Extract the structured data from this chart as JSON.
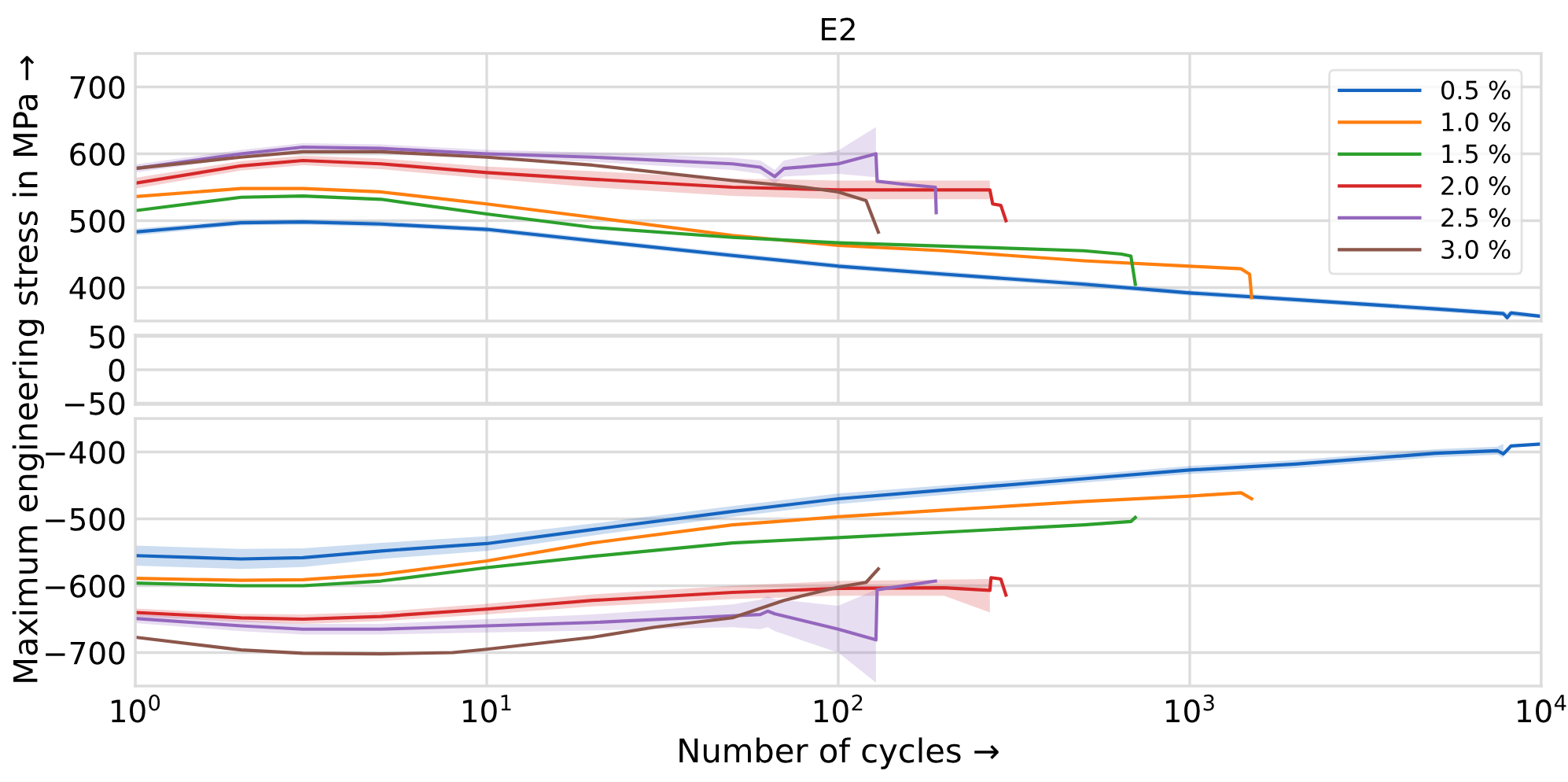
{
  "chart_data": [
    {
      "type": "line",
      "title": "E2",
      "ylabel": "Maximum engineering stress in MPa →",
      "log": "x",
      "grid": true,
      "legend": "top right",
      "tick_labels": "y",
      "xlim": [
        1,
        10000
      ],
      "xticks": [
        {
          "value": 1,
          "label": null
        },
        {
          "value": 10,
          "label": null
        },
        {
          "value": 100,
          "label": null
        },
        {
          "value": 1000,
          "label": null
        },
        {
          "value": 10000,
          "label": null
        }
      ],
      "ylim": [
        350,
        750
      ],
      "yticks": [
        400,
        500,
        600,
        700
      ],
      "series": [
        {
          "name": "0.5 %",
          "color": "#1565c0",
          "x": [
            1,
            2,
            3,
            5,
            10,
            20,
            50,
            100,
            200,
            500,
            1000,
            2000,
            5000,
            7800,
            8000,
            8200,
            10000
          ],
          "values": [
            483,
            497,
            498,
            495,
            487,
            470,
            448,
            432,
            420,
            405,
            392,
            382,
            368,
            361,
            355,
            362,
            357
          ],
          "lower": [
            478,
            493,
            494,
            491,
            483,
            466,
            444,
            428,
            416,
            401,
            388,
            378,
            364,
            357,
            350,
            357,
            354
          ],
          "upper": [
            488,
            501,
            502,
            499,
            491,
            474,
            452,
            436,
            424,
            409,
            396,
            386,
            372,
            365,
            362,
            366,
            360
          ]
        },
        {
          "name": "1.0 %",
          "color": "#ff7f0e",
          "x": [
            1,
            2,
            3,
            5,
            10,
            20,
            50,
            100,
            200,
            500,
            1000,
            1400,
            1480,
            1500
          ],
          "values": [
            536,
            548,
            548,
            543,
            525,
            505,
            478,
            463,
            455,
            440,
            432,
            428,
            420,
            385
          ]
        },
        {
          "name": "1.5 %",
          "color": "#2ca02c",
          "x": [
            1,
            2,
            3,
            5,
            10,
            20,
            50,
            100,
            200,
            500,
            640,
            680,
            700
          ],
          "values": [
            515,
            535,
            537,
            532,
            510,
            490,
            475,
            467,
            462,
            455,
            450,
            447,
            405
          ]
        },
        {
          "name": "2.0 %",
          "color": "#d62728",
          "x": [
            1,
            2,
            3,
            5,
            10,
            20,
            50,
            100,
            200,
            270,
            275,
            290,
            300
          ],
          "values": [
            556,
            582,
            590,
            585,
            572,
            562,
            550,
            546,
            546,
            546,
            525,
            523,
            500
          ],
          "lower": [
            548,
            575,
            583,
            577,
            563,
            550,
            537,
            532,
            532,
            532,
            null,
            null,
            null
          ],
          "upper": [
            564,
            589,
            597,
            593,
            581,
            574,
            563,
            560,
            560,
            560,
            null,
            null,
            null
          ]
        },
        {
          "name": "2.5 %",
          "color": "#9467bd",
          "x": [
            1,
            2,
            3,
            5,
            10,
            20,
            50,
            60,
            66,
            70,
            100,
            128,
            129,
            150,
            189,
            190
          ],
          "values": [
            578,
            600,
            610,
            608,
            600,
            595,
            585,
            580,
            566,
            578,
            585,
            600,
            559,
            555,
            550,
            512
          ],
          "lower": [
            572,
            594,
            604,
            602,
            594,
            588,
            576,
            570,
            556,
            566,
            570,
            565,
            null,
            null,
            null,
            null
          ],
          "upper": [
            584,
            606,
            616,
            614,
            606,
            602,
            594,
            590,
            576,
            590,
            605,
            640,
            null,
            null,
            null,
            null
          ]
        },
        {
          "name": "3.0 %",
          "color": "#8c564b",
          "x": [
            1,
            2,
            3,
            5,
            10,
            20,
            50,
            80,
            100,
            120,
            130
          ],
          "values": [
            578,
            595,
            603,
            603,
            595,
            583,
            560,
            550,
            543,
            530,
            483
          ]
        }
      ]
    },
    {
      "type": "line",
      "log": "x",
      "grid": true,
      "tick_labels": "y",
      "xlim": [
        1,
        10000
      ],
      "xticks": [
        {
          "value": 1,
          "label": null
        },
        {
          "value": 10,
          "label": null
        },
        {
          "value": 100,
          "label": null
        },
        {
          "value": 1000,
          "label": null
        },
        {
          "value": 10000,
          "label": null
        }
      ],
      "ylim": [
        -52,
        52
      ],
      "yticks": [
        -50,
        0,
        50
      ]
    },
    {
      "type": "line",
      "xlabel": "Number of cycles →",
      "log": "x",
      "grid": true,
      "xlim": [
        1,
        10000
      ],
      "xticks": [
        {
          "value": 1,
          "label": "10$^{0}$"
        },
        {
          "value": 10,
          "label": "10$^{1}$"
        },
        {
          "value": 100,
          "label": "10$^{2}$"
        },
        {
          "value": 1000,
          "label": "10$^{3}$"
        },
        {
          "value": 10000,
          "label": "10$^{4}$"
        }
      ],
      "ylim": [
        -750,
        -350
      ],
      "yticks": [
        -700,
        -600,
        -500,
        -400
      ],
      "series": [
        {
          "color": "#1565c0",
          "x": [
            1,
            2,
            3,
            5,
            10,
            20,
            50,
            100,
            200,
            500,
            1000,
            2000,
            5000,
            7500,
            7800,
            8000,
            8200,
            10000
          ],
          "values": [
            -555,
            -560,
            -558,
            -548,
            -537,
            -516,
            -489,
            -470,
            -457,
            -440,
            -427,
            -418,
            -402,
            -398,
            -403,
            -397,
            -391,
            -388
          ],
          "lower": [
            -570,
            -575,
            -572,
            -560,
            -548,
            -525,
            -497,
            -478,
            -464,
            -446,
            -433,
            -424,
            -408,
            -404,
            -409,
            null,
            null,
            null
          ],
          "upper": [
            -540,
            -545,
            -544,
            -536,
            -526,
            -507,
            -481,
            -462,
            -450,
            -434,
            -421,
            -412,
            -396,
            -392,
            -388,
            null,
            null,
            null
          ]
        },
        {
          "color": "#ff7f0e",
          "x": [
            1,
            2,
            3,
            5,
            10,
            20,
            50,
            100,
            200,
            500,
            1000,
            1400,
            1500
          ],
          "values": [
            -589,
            -592,
            -591,
            -583,
            -563,
            -536,
            -509,
            -497,
            -487,
            -474,
            -466,
            -461,
            -470
          ]
        },
        {
          "color": "#2ca02c",
          "x": [
            1,
            2,
            3,
            5,
            10,
            20,
            50,
            100,
            200,
            500,
            680,
            700
          ],
          "values": [
            -596,
            -600,
            -600,
            -593,
            -573,
            -556,
            -536,
            -528,
            -520,
            -509,
            -504,
            -498
          ]
        },
        {
          "color": "#d62728",
          "x": [
            1,
            2,
            3,
            5,
            10,
            20,
            50,
            100,
            200,
            270,
            272,
            290,
            300
          ],
          "values": [
            -640,
            -648,
            -650,
            -646,
            -635,
            -622,
            -610,
            -604,
            -603,
            -607,
            -588,
            -590,
            -614
          ],
          "lower": [
            -646,
            -654,
            -657,
            -653,
            -643,
            -631,
            -620,
            -615,
            -615,
            -640,
            null,
            null,
            null
          ],
          "upper": [
            -634,
            -642,
            -643,
            -639,
            -627,
            -613,
            -600,
            -593,
            -591,
            -590,
            null,
            null,
            null
          ]
        },
        {
          "color": "#9467bd",
          "x": [
            1,
            2,
            3,
            5,
            10,
            20,
            50,
            60,
            63,
            66,
            100,
            128,
            129,
            189
          ],
          "values": [
            -649,
            -660,
            -665,
            -665,
            -660,
            -655,
            -645,
            -643,
            -638,
            -642,
            -665,
            -681,
            -606,
            -593
          ],
          "lower": [
            -656,
            -668,
            -673,
            -673,
            -670,
            -667,
            -662,
            -665,
            -662,
            -668,
            -700,
            -745,
            null,
            null
          ],
          "upper": [
            -642,
            -652,
            -657,
            -657,
            -650,
            -643,
            -628,
            -621,
            -616,
            -620,
            -630,
            -606,
            null,
            null
          ]
        },
        {
          "color": "#8c564b",
          "x": [
            1,
            2,
            3,
            5,
            8,
            10,
            20,
            30,
            50,
            70,
            100,
            120,
            130
          ],
          "values": [
            -677,
            -696,
            -701,
            -702,
            -700,
            -695,
            -677,
            -662,
            -648,
            -622,
            -602,
            -595,
            -575
          ]
        }
      ]
    }
  ]
}
